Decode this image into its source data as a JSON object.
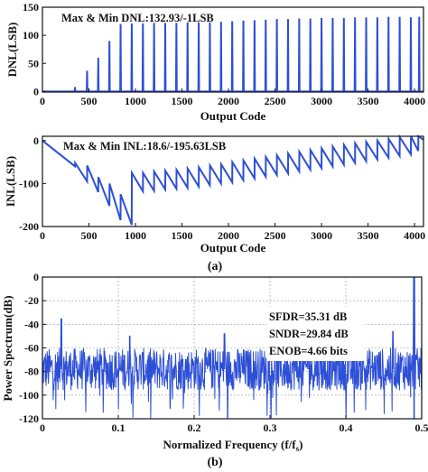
{
  "colors": {
    "series": "#2d4fd6",
    "axis": "#111111",
    "grid": "#999999"
  },
  "panel_labels": {
    "a": "(a)",
    "b": "(b)"
  },
  "chart_data": [
    {
      "id": "dnl",
      "type": "line",
      "title": "",
      "xlabel": "Output Code",
      "ylabel": "DNL(LSB)",
      "annotations": [
        "Max & Min DNL:132.93/-1LSB"
      ],
      "xlim": [
        0,
        4096
      ],
      "ylim": [
        -1,
        150
      ],
      "xticks": [
        0,
        500,
        1000,
        1500,
        2000,
        2500,
        3000,
        3500,
        4000
      ],
      "yticks": [
        0,
        50,
        100,
        150
      ],
      "grid": false,
      "baseline": 0,
      "spike_width": 4,
      "spikes": [
        {
          "x": 350,
          "y": 8
        },
        {
          "x": 480,
          "y": 37
        },
        {
          "x": 600,
          "y": 60
        },
        {
          "x": 720,
          "y": 90
        },
        {
          "x": 840,
          "y": 120
        },
        {
          "x": 960,
          "y": 121
        },
        {
          "x": 1080,
          "y": 121
        },
        {
          "x": 1200,
          "y": 122
        },
        {
          "x": 1320,
          "y": 122
        },
        {
          "x": 1440,
          "y": 122
        },
        {
          "x": 1560,
          "y": 123
        },
        {
          "x": 1680,
          "y": 123
        },
        {
          "x": 1800,
          "y": 123
        },
        {
          "x": 1920,
          "y": 124
        },
        {
          "x": 2040,
          "y": 125
        },
        {
          "x": 2160,
          "y": 126
        },
        {
          "x": 2280,
          "y": 127
        },
        {
          "x": 2400,
          "y": 128
        },
        {
          "x": 2520,
          "y": 129
        },
        {
          "x": 2640,
          "y": 129
        },
        {
          "x": 2760,
          "y": 130
        },
        {
          "x": 2880,
          "y": 130
        },
        {
          "x": 3000,
          "y": 131
        },
        {
          "x": 3120,
          "y": 131
        },
        {
          "x": 3240,
          "y": 131
        },
        {
          "x": 3360,
          "y": 132
        },
        {
          "x": 3480,
          "y": 132
        },
        {
          "x": 3600,
          "y": 132
        },
        {
          "x": 3720,
          "y": 133
        },
        {
          "x": 3840,
          "y": 133
        },
        {
          "x": 3960,
          "y": 132
        },
        {
          "x": 4050,
          "y": 133
        }
      ]
    },
    {
      "id": "inl",
      "type": "line",
      "title": "",
      "xlabel": "Output Code",
      "ylabel": "INL(LSB)",
      "annotations": [
        "Max & Min INL:18.6/-195.63LSB"
      ],
      "xlim": [
        0,
        4096
      ],
      "ylim": [
        -200,
        10
      ],
      "xticks": [
        0,
        500,
        1000,
        1500,
        2000,
        2500,
        3000,
        3500,
        4000
      ],
      "yticks": [
        0,
        -100,
        -200
      ],
      "grid": false,
      "points": [
        [
          0,
          0
        ],
        [
          350,
          -60
        ],
        [
          351,
          -52
        ],
        [
          480,
          -95
        ],
        [
          481,
          -58
        ],
        [
          600,
          -120
        ],
        [
          601,
          -85
        ],
        [
          720,
          -152
        ],
        [
          721,
          -100
        ],
        [
          840,
          -185
        ],
        [
          841,
          -125
        ],
        [
          960,
          -196
        ],
        [
          961,
          -75
        ],
        [
          1080,
          -118
        ],
        [
          1081,
          -75
        ],
        [
          1200,
          -117
        ],
        [
          1201,
          -72
        ],
        [
          1320,
          -114
        ],
        [
          1321,
          -70
        ],
        [
          1440,
          -112
        ],
        [
          1441,
          -68
        ],
        [
          1560,
          -110
        ],
        [
          1561,
          -65
        ],
        [
          1680,
          -107
        ],
        [
          1681,
          -62
        ],
        [
          1800,
          -104
        ],
        [
          1801,
          -58
        ],
        [
          1920,
          -100
        ],
        [
          1921,
          -55
        ],
        [
          2040,
          -97
        ],
        [
          2041,
          -50
        ],
        [
          2160,
          -92
        ],
        [
          2161,
          -46
        ],
        [
          2280,
          -88
        ],
        [
          2281,
          -42
        ],
        [
          2400,
          -84
        ],
        [
          2401,
          -38
        ],
        [
          2520,
          -80
        ],
        [
          2521,
          -34
        ],
        [
          2640,
          -76
        ],
        [
          2641,
          -30
        ],
        [
          2760,
          -72
        ],
        [
          2761,
          -26
        ],
        [
          2880,
          -68
        ],
        [
          2881,
          -22
        ],
        [
          3000,
          -64
        ],
        [
          3001,
          -18
        ],
        [
          3120,
          -60
        ],
        [
          3121,
          -14
        ],
        [
          3240,
          -56
        ],
        [
          3241,
          -10
        ],
        [
          3360,
          -52
        ],
        [
          3361,
          -6
        ],
        [
          3480,
          -48
        ],
        [
          3481,
          -3
        ],
        [
          3600,
          -44
        ],
        [
          3601,
          0
        ],
        [
          3720,
          -40
        ],
        [
          3721,
          4
        ],
        [
          3840,
          -36
        ],
        [
          3841,
          8
        ],
        [
          3960,
          -32
        ],
        [
          3961,
          12
        ],
        [
          4040,
          -24
        ],
        [
          4041,
          18.6
        ],
        [
          4096,
          2
        ]
      ]
    },
    {
      "id": "spectrum",
      "type": "line",
      "title": "",
      "xlabel": "Normalized Frequency (f/f",
      "xlabel_sub": "s",
      "xlabel_end": ")",
      "ylabel": "Power Spectrum(dB)",
      "annotations": [
        "SFDR=35.31 dB",
        "SNDR=29.84 dB",
        "ENOB=4.66 bits"
      ],
      "xlim": [
        0,
        0.5
      ],
      "ylim": [
        -120,
        0
      ],
      "xticks": [
        0,
        0.1,
        0.2,
        0.3,
        0.4,
        0.5
      ],
      "yticks": [
        0,
        -20,
        -40,
        -60,
        -80,
        -100,
        -120
      ],
      "grid": true,
      "noise_floor": -78,
      "n_points": 1024,
      "signal": {
        "x": 0.49,
        "y": 0
      },
      "spurs": [
        {
          "x": 0.025,
          "y": -35.31
        },
        {
          "x": 0.115,
          "y": -50
        },
        {
          "x": 0.24,
          "y": -48
        },
        {
          "x": 0.35,
          "y": -50
        },
        {
          "x": 0.462,
          "y": -46
        }
      ]
    }
  ]
}
